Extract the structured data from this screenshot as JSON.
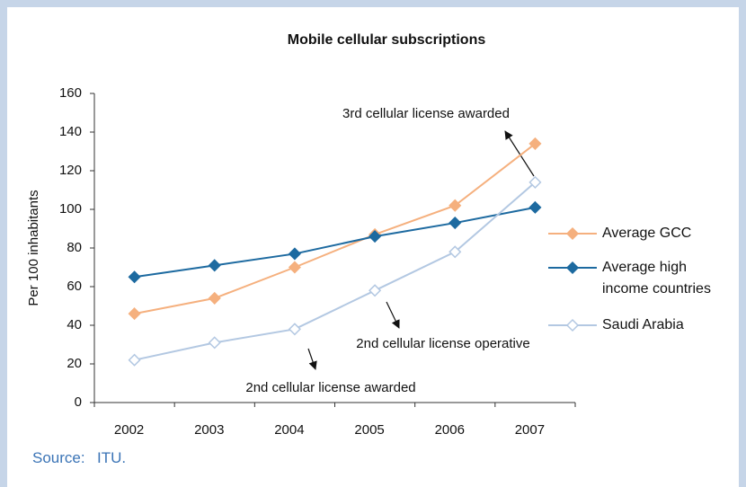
{
  "chart_data": {
    "type": "line",
    "title": "Mobile cellular subscriptions",
    "y_label": "Per 100 inhabitants",
    "categories": [
      "2002",
      "2003",
      "2004",
      "2005",
      "2006",
      "2007"
    ],
    "series": [
      {
        "name": "Average GCC",
        "color": "#f5b07e",
        "marker_fill": "#f5b07e",
        "values": [
          46,
          54,
          70,
          87,
          102,
          134
        ]
      },
      {
        "name": "Average high income countries",
        "color": "#1d6aa0",
        "marker_fill": "#1d6aa0",
        "values": [
          65,
          71,
          77,
          86,
          93,
          101
        ]
      },
      {
        "name": "Saudi Arabia",
        "color": "#b3c8e2",
        "marker_fill": "#ffffff",
        "values": [
          22,
          31,
          38,
          58,
          78,
          114
        ]
      }
    ],
    "ylim": [
      0,
      160
    ],
    "yticks": [
      0,
      20,
      40,
      60,
      80,
      100,
      120,
      140,
      160
    ],
    "annotations": [
      "3rd cellular license awarded",
      "2nd cellular license operative",
      "2nd cellular license awarded"
    ],
    "source_label": "Source:",
    "source": "ITU."
  }
}
